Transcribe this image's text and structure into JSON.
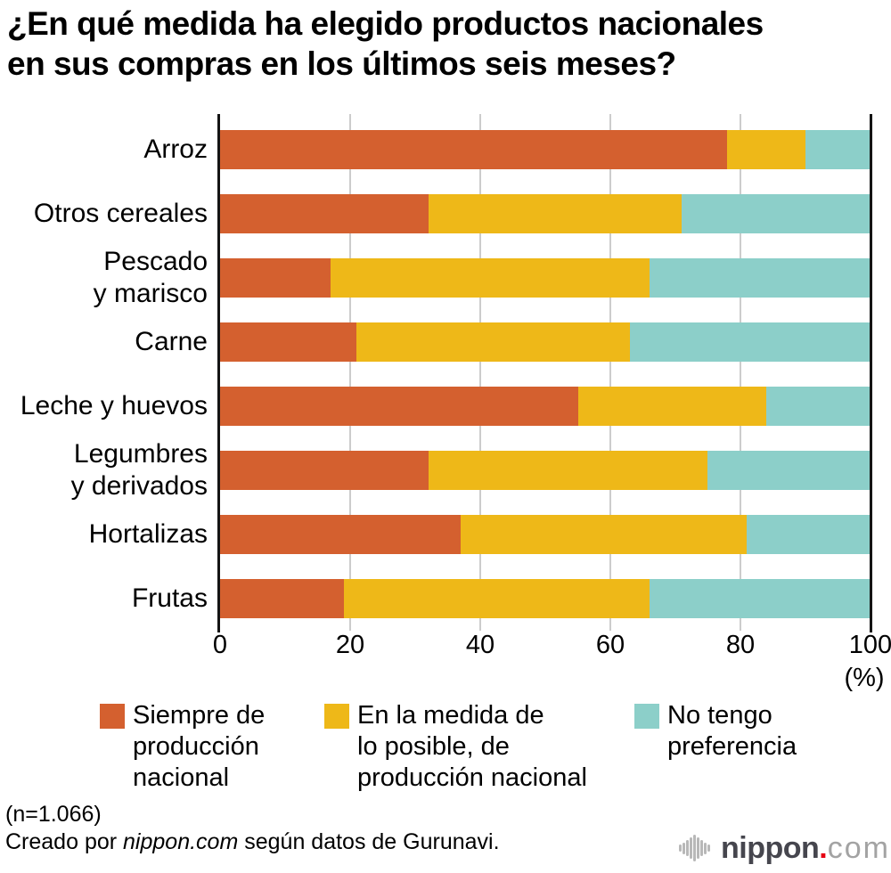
{
  "title": {
    "line1": "¿En qué medida ha elegido productos nacionales",
    "line2": "en sus compras en los últimos seis meses?"
  },
  "axis": {
    "ticks": [
      0,
      20,
      40,
      60,
      80,
      100
    ],
    "unit_label": "(%)"
  },
  "chart_data": {
    "type": "bar",
    "orientation": "horizontal",
    "stacked": true,
    "title": "¿En qué medida ha elegido productos nacionales en sus compras en los últimos seis meses?",
    "x_range": [
      0,
      100
    ],
    "x_ticks": [
      0,
      20,
      40,
      60,
      80,
      100
    ],
    "x_unit": "(%)",
    "grid": true,
    "legend_position": "bottom",
    "categories": [
      "Arroz",
      "Otros cereales",
      "Pescado y marisco",
      "Carne",
      "Leche y huevos",
      "Legumbres y derivados",
      "Hortalizas",
      "Frutas"
    ],
    "category_label_lines": [
      [
        "Arroz"
      ],
      [
        "Otros cereales"
      ],
      [
        "Pescado",
        "y marisco"
      ],
      [
        "Carne"
      ],
      [
        "Leche y huevos"
      ],
      [
        "Legumbres",
        "y derivados"
      ],
      [
        "Hortalizas"
      ],
      [
        "Frutas"
      ]
    ],
    "series": [
      {
        "name": "Siempre de producción nacional",
        "color": "#d4602f",
        "values": [
          78,
          32,
          17,
          21,
          55,
          32,
          37,
          19
        ]
      },
      {
        "name": "En la medida de lo posible, de producción nacional",
        "color": "#eeb818",
        "values": [
          12,
          39,
          49,
          42,
          29,
          43,
          44,
          47
        ]
      },
      {
        "name": "No tengo preferencia",
        "color": "#8ccfc9",
        "values": [
          10,
          29,
          34,
          37,
          16,
          25,
          19,
          34
        ]
      }
    ]
  },
  "legend": {
    "items": [
      {
        "series": "Siempre de producción nacional",
        "color": "#d4602f",
        "lines": [
          "Siempre de",
          "producción",
          "nacional"
        ]
      },
      {
        "series": "En la medida de lo posible, de producción nacional",
        "color": "#eeb818",
        "lines": [
          "En la medida de",
          "lo posible, de",
          "producción nacional"
        ]
      },
      {
        "series": "No tengo preferencia",
        "color": "#8ccfc9",
        "lines": [
          "No tengo",
          "preferencia"
        ]
      }
    ]
  },
  "footer": {
    "sample_size": "(n=1.066)",
    "credit_prefix": "Creado por ",
    "credit_source": "nippon.com",
    "credit_suffix": " según datos de Gurunavi."
  },
  "logo": {
    "name": "nippon",
    "dot": ".",
    "tld": "com"
  },
  "colors": {
    "grid": "#cccccc",
    "axis": "#141414",
    "logo_text": "#46464e",
    "logo_accent": "#e60012",
    "logo_tld": "#a3a3a3",
    "logo_icon": "#b8b8b8"
  }
}
